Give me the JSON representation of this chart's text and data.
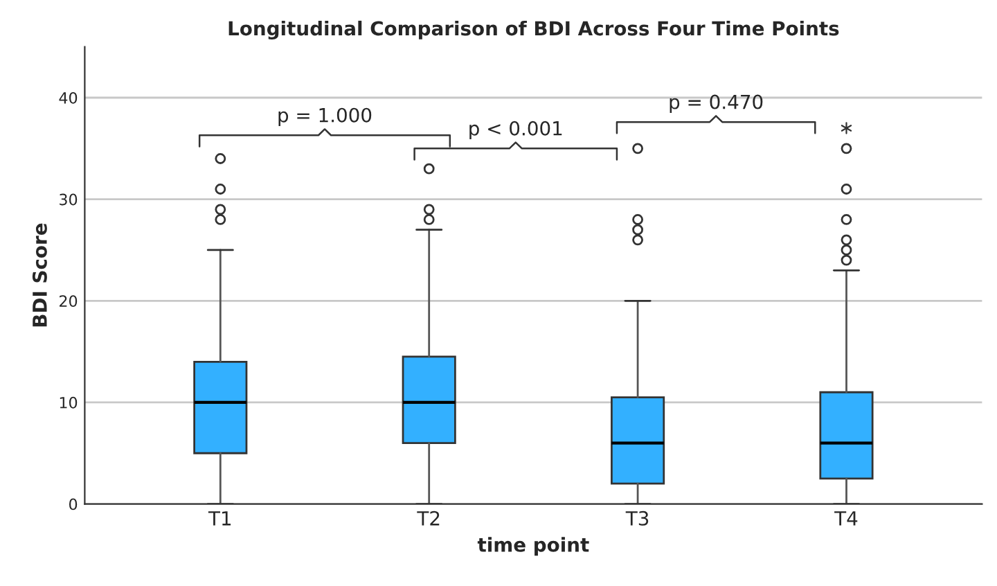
{
  "chart_data": {
    "type": "box",
    "title": "Longitudinal Comparison of BDI Across Four Time Points",
    "xlabel": "time point",
    "ylabel": "BDI Score",
    "categories": [
      "T1",
      "T2",
      "T3",
      "T4"
    ],
    "color": "#33b0ff",
    "boxes": [
      {
        "low": 0,
        "q1": 5,
        "median": 10,
        "q3": 14,
        "high": 25,
        "outliers": [
          28,
          29,
          31,
          34
        ]
      },
      {
        "low": 0,
        "q1": 6,
        "median": 10,
        "q3": 14.5,
        "high": 27,
        "outliers": [
          28,
          29,
          33
        ]
      },
      {
        "low": 0,
        "q1": 2,
        "median": 6,
        "q3": 10.5,
        "high": 20,
        "outliers": [
          26,
          27,
          28,
          35
        ]
      },
      {
        "low": 0,
        "q1": 2.5,
        "median": 6,
        "q3": 11,
        "high": 23,
        "outliers": [
          24,
          25,
          26,
          28,
          31,
          35,
          37
        ]
      }
    ],
    "ylim": [
      0,
      45
    ],
    "yticks": [
      0,
      10,
      20,
      30,
      40
    ],
    "grid": "y",
    "annotations": [
      "p = 1.000",
      "p < 0.001",
      "p = 0.470"
    ]
  }
}
